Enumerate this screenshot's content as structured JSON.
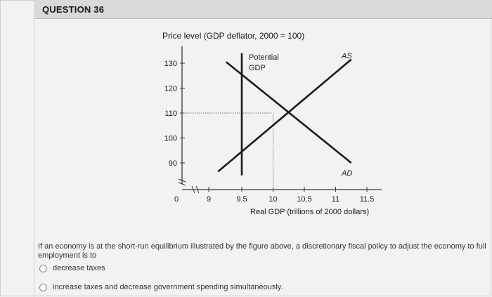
{
  "question": {
    "title": "QUESTION 36",
    "stem": "If an economy is at the short-run equilibrium illustrated by the figure above, a discretionary fiscal policy to adjust the economy to full employment is to",
    "options": [
      {
        "label": "decrease taxes",
        "selected": false
      },
      {
        "label": "increase taxes and decrease government spending simultaneously.",
        "selected": false
      }
    ]
  },
  "chart_data": {
    "type": "line",
    "ylabel": "Price level (GDP deflator, 2000 = 100)",
    "xlabel": "Real GDP (trillions of 2000 dollars)",
    "x_ticks": [
      "0",
      "9",
      "9.5",
      "10",
      "10.5",
      "11",
      "11.5"
    ],
    "y_ticks": [
      "90",
      "100",
      "110",
      "120",
      "130"
    ],
    "xlim": [
      9,
      11.5
    ],
    "ylim": [
      85,
      135
    ],
    "axis_break": true,
    "series": [
      {
        "name": "AS",
        "points": [
          [
            9.12,
            86.5
          ],
          [
            11.25,
            131.5
          ]
        ]
      },
      {
        "name": "AD",
        "points": [
          [
            9.25,
            130.5
          ],
          [
            11.25,
            90
          ]
        ]
      },
      {
        "name": "Potential GDP",
        "points": [
          [
            9.5,
            85
          ],
          [
            9.5,
            134
          ]
        ]
      }
    ],
    "equilibrium": {
      "x": 10,
      "y": 110
    },
    "annotations": [
      "Potential",
      "GDP",
      "AS",
      "AD"
    ]
  }
}
